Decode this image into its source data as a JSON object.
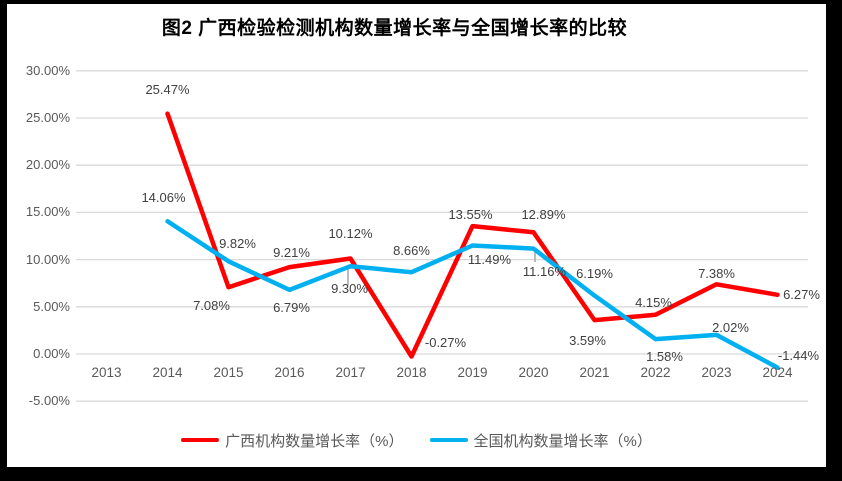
{
  "title": "图2 广西检验检测机构数量增长率与全国增长率的比较",
  "colors": {
    "frame": "#000000",
    "background": "#ffffff",
    "gridline": "#d9d9d9",
    "leader_line": "#a6a6a6",
    "axis_text": "#595959",
    "data_label_text": "#404040",
    "series_guangxi": "#ff0000",
    "series_national": "#00b0f0"
  },
  "chart_data": {
    "type": "line",
    "title": "图2 广西检验检测机构数量增长率与全国增长率的比较",
    "categories": [
      "2013",
      "2014",
      "2015",
      "2016",
      "2017",
      "2018",
      "2019",
      "2020",
      "2021",
      "2022",
      "2023",
      "2024"
    ],
    "y_axis": {
      "min": -5,
      "max": 30,
      "step": 5,
      "tick_labels": [
        "30.00%",
        "25.00%",
        "20.00%",
        "15.00%",
        "10.00%",
        "5.00%",
        "0.00%",
        "-5.00%"
      ],
      "format": "percent"
    },
    "grid": true,
    "legend_position": "bottom",
    "series": [
      {
        "id": "guangxi",
        "name": "广西机构数量增长率（%）",
        "color": "#ff0000",
        "values": [
          null,
          25.47,
          7.08,
          9.21,
          10.12,
          -0.27,
          13.55,
          12.89,
          3.59,
          4.15,
          7.38,
          6.27
        ],
        "data_labels": [
          null,
          "25.47%",
          "7.08%",
          "9.21%",
          "10.12%",
          "-0.27%",
          "13.55%",
          "12.89%",
          "3.59%",
          "4.15%",
          "7.38%",
          "6.27%"
        ],
        "label_offsets": [
          null,
          [
            0,
            -24
          ],
          [
            -17,
            18
          ],
          [
            2,
            -15
          ],
          [
            0,
            -25
          ],
          [
            34,
            -14
          ],
          [
            -2,
            -12
          ],
          [
            10,
            -18
          ],
          [
            -7,
            20
          ],
          [
            -2,
            -12
          ],
          [
            0,
            -11
          ],
          [
            24,
            0
          ]
        ]
      },
      {
        "id": "national",
        "name": "全国机构数量增长率（%）",
        "color": "#00b0f0",
        "values": [
          null,
          14.06,
          9.82,
          6.79,
          9.3,
          8.66,
          11.49,
          11.16,
          6.19,
          1.58,
          2.02,
          -1.44
        ],
        "data_labels": [
          null,
          "14.06%",
          "9.82%",
          "6.79%",
          "9.30%",
          "8.66%",
          "11.49%",
          "11.16%",
          "6.19%",
          "1.58%",
          "2.02%",
          "-1.44%"
        ],
        "label_offsets": [
          null,
          [
            -4,
            -24
          ],
          [
            9,
            -18
          ],
          [
            2,
            18
          ],
          [
            -1,
            22
          ],
          [
            0,
            -22
          ],
          [
            17,
            14
          ],
          [
            11,
            23
          ],
          [
            0,
            -22
          ],
          [
            9,
            17
          ],
          [
            14,
            -7
          ],
          [
            21,
            -12
          ]
        ]
      }
    ]
  }
}
